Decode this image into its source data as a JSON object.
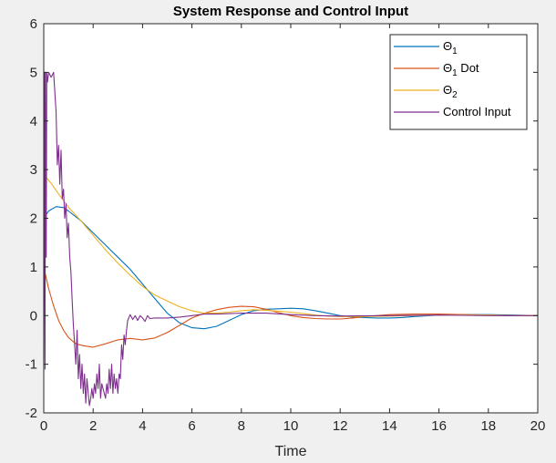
{
  "chart_data": {
    "type": "line",
    "title": "System Response and Control Input",
    "xlabel": "Time",
    "ylabel": "",
    "xlim": [
      0,
      20
    ],
    "ylim": [
      -2,
      6
    ],
    "xticks": [
      "0",
      "2",
      "4",
      "6",
      "8",
      "10",
      "12",
      "14",
      "16",
      "18",
      "20"
    ],
    "yticks": [
      "-2",
      "-1",
      "0",
      "1",
      "2",
      "3",
      "4",
      "5",
      "6"
    ],
    "grid": false,
    "legend_position": "top-right",
    "series": [
      {
        "name": "Θ1",
        "color": "#0072BD",
        "points": [
          [
            0,
            2.0
          ],
          [
            0.2,
            2.15
          ],
          [
            0.5,
            2.24
          ],
          [
            0.8,
            2.22
          ],
          [
            1,
            2.15
          ],
          [
            1.5,
            1.95
          ],
          [
            2,
            1.7
          ],
          [
            2.5,
            1.45
          ],
          [
            3,
            1.2
          ],
          [
            3.5,
            0.95
          ],
          [
            4,
            0.65
          ],
          [
            4.5,
            0.35
          ],
          [
            5,
            0.05
          ],
          [
            5.5,
            -0.15
          ],
          [
            6,
            -0.25
          ],
          [
            6.5,
            -0.27
          ],
          [
            7,
            -0.22
          ],
          [
            7.5,
            -0.1
          ],
          [
            8,
            0.02
          ],
          [
            8.5,
            0.1
          ],
          [
            9,
            0.13
          ],
          [
            9.5,
            0.14
          ],
          [
            10,
            0.15
          ],
          [
            10.5,
            0.14
          ],
          [
            11,
            0.1
          ],
          [
            11.5,
            0.05
          ],
          [
            12,
            0.0
          ],
          [
            12.5,
            -0.03
          ],
          [
            13,
            -0.04
          ],
          [
            13.5,
            -0.05
          ],
          [
            14,
            -0.05
          ],
          [
            14.5,
            -0.04
          ],
          [
            15,
            -0.02
          ],
          [
            16,
            0.01
          ],
          [
            17,
            0.02
          ],
          [
            18,
            0.02
          ],
          [
            19,
            0.01
          ],
          [
            20,
            0.0
          ]
        ]
      },
      {
        "name": "Θ1 Dot",
        "color": "#D95319",
        "points": [
          [
            0,
            1.0
          ],
          [
            0.2,
            0.55
          ],
          [
            0.4,
            0.2
          ],
          [
            0.6,
            -0.1
          ],
          [
            0.8,
            -0.3
          ],
          [
            1,
            -0.45
          ],
          [
            1.3,
            -0.58
          ],
          [
            1.6,
            -0.62
          ],
          [
            2,
            -0.65
          ],
          [
            2.5,
            -0.58
          ],
          [
            3,
            -0.5
          ],
          [
            3.5,
            -0.47
          ],
          [
            4,
            -0.5
          ],
          [
            4.5,
            -0.46
          ],
          [
            5,
            -0.35
          ],
          [
            5.5,
            -0.2
          ],
          [
            6,
            -0.05
          ],
          [
            6.5,
            0.05
          ],
          [
            7,
            0.12
          ],
          [
            7.5,
            0.17
          ],
          [
            8,
            0.19
          ],
          [
            8.5,
            0.18
          ],
          [
            9,
            0.13
          ],
          [
            9.5,
            0.06
          ],
          [
            10,
            0.0
          ],
          [
            10.5,
            -0.04
          ],
          [
            11,
            -0.06
          ],
          [
            11.5,
            -0.07
          ],
          [
            12,
            -0.07
          ],
          [
            12.5,
            -0.05
          ],
          [
            13,
            -0.02
          ],
          [
            14,
            0.02
          ],
          [
            15,
            0.03
          ],
          [
            16,
            0.03
          ],
          [
            17,
            0.02
          ],
          [
            18,
            0.01
          ],
          [
            19,
            0.0
          ],
          [
            20,
            0.0
          ]
        ]
      },
      {
        "name": "Θ2",
        "color": "#EDB120",
        "points": [
          [
            0,
            2.9
          ],
          [
            0.3,
            2.72
          ],
          [
            0.6,
            2.5
          ],
          [
            1,
            2.23
          ],
          [
            1.5,
            1.95
          ],
          [
            2,
            1.65
          ],
          [
            2.5,
            1.35
          ],
          [
            3,
            1.08
          ],
          [
            3.5,
            0.83
          ],
          [
            4,
            0.6
          ],
          [
            4.5,
            0.42
          ],
          [
            5,
            0.3
          ],
          [
            5.5,
            0.18
          ],
          [
            6,
            0.1
          ],
          [
            6.5,
            0.05
          ],
          [
            7,
            0.05
          ],
          [
            7.5,
            0.07
          ],
          [
            8,
            0.1
          ],
          [
            8.5,
            0.12
          ],
          [
            9,
            0.11
          ],
          [
            9.5,
            0.09
          ],
          [
            10,
            0.07
          ],
          [
            10.5,
            0.04
          ],
          [
            11,
            0.01
          ],
          [
            11.5,
            -0.01
          ],
          [
            12,
            -0.02
          ],
          [
            13,
            -0.02
          ],
          [
            14,
            -0.01
          ],
          [
            15,
            0.0
          ],
          [
            16,
            0.01
          ],
          [
            17,
            0.01
          ],
          [
            18,
            0.01
          ],
          [
            19,
            0.0
          ],
          [
            20,
            0.0
          ]
        ]
      },
      {
        "name": "Control Input",
        "color": "#7E2F8E",
        "points": [
          [
            0,
            -0.9
          ],
          [
            0.03,
            5.0
          ],
          [
            0.05,
            -1.1
          ],
          [
            0.07,
            5.0
          ],
          [
            0.1,
            1.2
          ],
          [
            0.12,
            5.0
          ],
          [
            0.15,
            4.8
          ],
          [
            0.2,
            5.0
          ],
          [
            0.3,
            4.9
          ],
          [
            0.4,
            5.0
          ],
          [
            0.5,
            4.2
          ],
          [
            0.55,
            3.1
          ],
          [
            0.6,
            3.5
          ],
          [
            0.65,
            2.7
          ],
          [
            0.7,
            3.4
          ],
          [
            0.75,
            2.4
          ],
          [
            0.8,
            2.6
          ],
          [
            0.85,
            2.0
          ],
          [
            0.9,
            2.3
          ],
          [
            0.95,
            1.6
          ],
          [
            1.0,
            1.9
          ],
          [
            1.05,
            1.2
          ],
          [
            1.1,
            0.9
          ],
          [
            1.15,
            0.3
          ],
          [
            1.2,
            -0.2
          ],
          [
            1.25,
            -0.6
          ],
          [
            1.3,
            -1.0
          ],
          [
            1.35,
            -0.3
          ],
          [
            1.4,
            -1.3
          ],
          [
            1.45,
            -0.8
          ],
          [
            1.5,
            -1.5
          ],
          [
            1.55,
            -1.0
          ],
          [
            1.6,
            -1.6
          ],
          [
            1.65,
            -1.2
          ],
          [
            1.7,
            -1.8
          ],
          [
            1.75,
            -1.3
          ],
          [
            1.8,
            -1.6
          ],
          [
            1.85,
            -1.85
          ],
          [
            1.9,
            -1.7
          ],
          [
            1.95,
            -1.5
          ],
          [
            2.0,
            -1.7
          ],
          [
            2.05,
            -1.4
          ],
          [
            2.1,
            -1.6
          ],
          [
            2.15,
            -1.2
          ],
          [
            2.2,
            -1.5
          ],
          [
            2.25,
            -1.0
          ],
          [
            2.3,
            -1.7
          ],
          [
            2.35,
            -1.4
          ],
          [
            2.4,
            -1.5
          ],
          [
            2.5,
            -1.7
          ],
          [
            2.55,
            -1.4
          ],
          [
            2.6,
            -1.6
          ],
          [
            2.65,
            -1.1
          ],
          [
            2.7,
            -1.5
          ],
          [
            2.75,
            -1.0
          ],
          [
            2.8,
            -1.6
          ],
          [
            2.85,
            -1.2
          ],
          [
            2.9,
            -1.5
          ],
          [
            2.95,
            -1.3
          ],
          [
            3.0,
            -1.6
          ],
          [
            3.05,
            -1.2
          ],
          [
            3.1,
            -1.3
          ],
          [
            3.15,
            -0.6
          ],
          [
            3.2,
            -0.9
          ],
          [
            3.25,
            -0.4
          ],
          [
            3.3,
            -0.6
          ],
          [
            3.35,
            -0.3
          ],
          [
            3.4,
            -0.1
          ],
          [
            3.5,
            0.02
          ],
          [
            3.6,
            -0.08
          ],
          [
            3.7,
            0.0
          ],
          [
            3.8,
            -0.1
          ],
          [
            3.9,
            0.0
          ],
          [
            4.0,
            -0.05
          ],
          [
            4.1,
            -0.12
          ],
          [
            4.2,
            0.0
          ],
          [
            4.3,
            -0.06
          ],
          [
            4.5,
            -0.05
          ],
          [
            5,
            -0.05
          ],
          [
            5.5,
            -0.03
          ],
          [
            6,
            0.0
          ],
          [
            6.5,
            0.03
          ],
          [
            7,
            0.03
          ],
          [
            8,
            0.05
          ],
          [
            9,
            0.05
          ],
          [
            10,
            0.02
          ],
          [
            11,
            0.0
          ],
          [
            12,
            -0.01
          ],
          [
            14,
            0.0
          ],
          [
            16,
            0.01
          ],
          [
            18,
            0.0
          ],
          [
            20,
            0.0
          ]
        ]
      }
    ]
  }
}
